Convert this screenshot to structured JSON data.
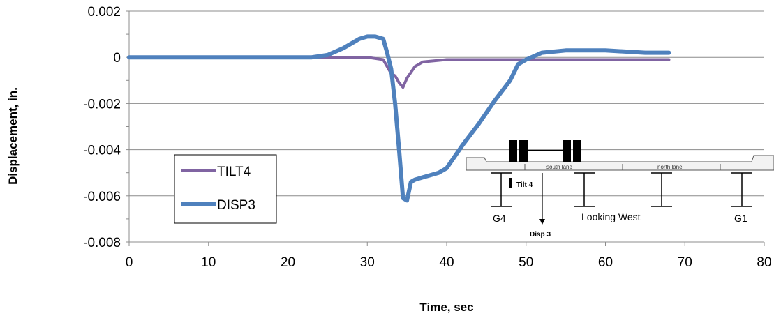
{
  "chart_data": {
    "type": "line",
    "xlabel": "Time, sec",
    "ylabel": "Displacement, in.",
    "xlim": [
      0,
      80
    ],
    "ylim": [
      -0.008,
      0.002
    ],
    "xticks": [
      0,
      10,
      20,
      30,
      40,
      50,
      60,
      70,
      80
    ],
    "xtick_labels": [
      "0",
      "10",
      "20",
      "30",
      "40",
      "50",
      "60",
      "70",
      "80"
    ],
    "yticks": [
      0.002,
      0,
      -0.002,
      -0.004,
      -0.006,
      -0.008
    ],
    "ytick_labels": [
      "0.002",
      "0",
      "-0.002",
      "-0.004",
      "-0.006",
      "-0.008"
    ],
    "grid": "horizontal",
    "legend_position": "lower-left",
    "series": [
      {
        "name": "TILT4",
        "color": "#8064a2",
        "points": [
          [
            0,
            0
          ],
          [
            10,
            0
          ],
          [
            20,
            0
          ],
          [
            25,
            0
          ],
          [
            30,
            0
          ],
          [
            32,
            -0.0001
          ],
          [
            33,
            -0.0007
          ],
          [
            33.5,
            -0.0008
          ],
          [
            34,
            -0.0011
          ],
          [
            34.5,
            -0.0013
          ],
          [
            35,
            -0.0009
          ],
          [
            36,
            -0.0004
          ],
          [
            37,
            -0.0002
          ],
          [
            40,
            -0.0001
          ],
          [
            50,
            -0.0001
          ],
          [
            68,
            -0.0001
          ]
        ]
      },
      {
        "name": "DISP3",
        "color": "#4f81bd",
        "points": [
          [
            0,
            0
          ],
          [
            5,
            0
          ],
          [
            10,
            0
          ],
          [
            15,
            0
          ],
          [
            20,
            0
          ],
          [
            23,
            0
          ],
          [
            25,
            0.0001
          ],
          [
            27,
            0.0004
          ],
          [
            29,
            0.0008
          ],
          [
            30,
            0.0009
          ],
          [
            31,
            0.0009
          ],
          [
            32,
            0.0008
          ],
          [
            32.5,
            0.0002
          ],
          [
            33,
            -0.0005
          ],
          [
            33.5,
            -0.002
          ],
          [
            34,
            -0.004
          ],
          [
            34.5,
            -0.0061
          ],
          [
            35,
            -0.0062
          ],
          [
            35.5,
            -0.0054
          ],
          [
            36,
            -0.0053
          ],
          [
            37,
            -0.0052
          ],
          [
            38,
            -0.0051
          ],
          [
            39,
            -0.005
          ],
          [
            40,
            -0.0048
          ],
          [
            42,
            -0.0038
          ],
          [
            44,
            -0.0029
          ],
          [
            46,
            -0.0019
          ],
          [
            48,
            -0.001
          ],
          [
            49,
            -0.0003
          ],
          [
            50,
            -0.0001
          ],
          [
            52,
            0.0002
          ],
          [
            55,
            0.0003
          ],
          [
            60,
            0.0003
          ],
          [
            65,
            0.0002
          ],
          [
            68,
            0.0002
          ]
        ]
      }
    ],
    "inset": {
      "lane_labels": [
        "south lane",
        "north lane"
      ],
      "girder_labels": [
        "G4",
        "G1"
      ],
      "gauge_labels": [
        "Tilt 4",
        "Disp 3"
      ],
      "caption": "Looking West"
    }
  }
}
